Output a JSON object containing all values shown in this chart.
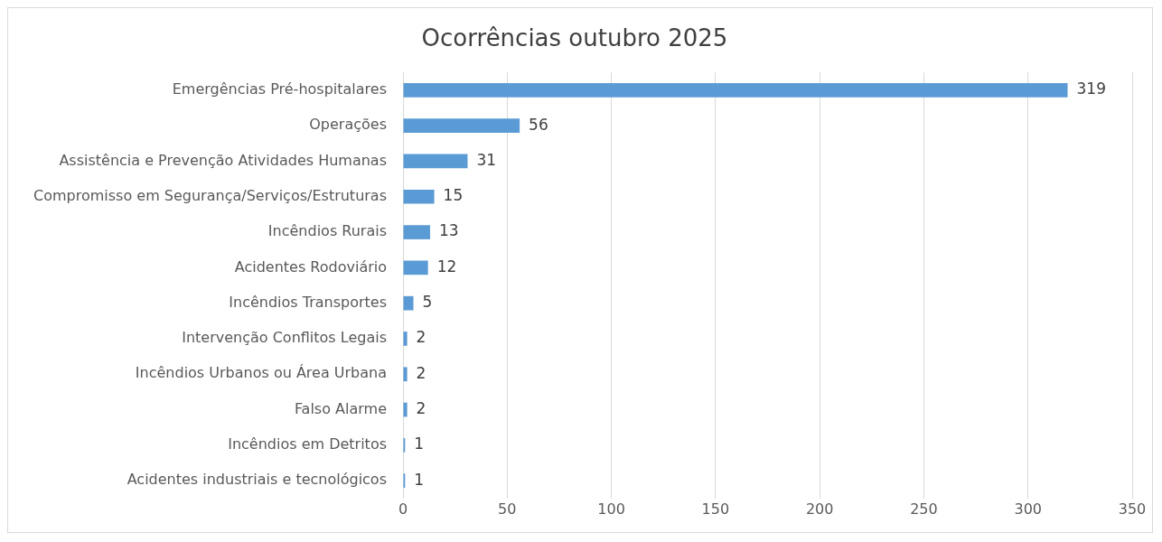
{
  "chart_data": {
    "type": "bar",
    "orientation": "horizontal",
    "title": "Ocorrências outubro 2025",
    "categories": [
      "Emergências Pré-hospitalares",
      "Operações",
      "Assistência e Prevenção Atividades Humanas",
      "Compromisso em Segurança/Serviços/Estruturas",
      "Incêndios Rurais",
      "Acidentes Rodoviário",
      "Incêndios Transportes",
      "Intervenção Conflitos Legais",
      "Incêndios Urbanos ou Área Urbana",
      "Falso Alarme",
      "Incêndios em Detritos",
      "Acidentes industriais e tecnológicos"
    ],
    "values": [
      319,
      56,
      31,
      15,
      13,
      12,
      5,
      2,
      2,
      2,
      1,
      1
    ],
    "color": "#5b9bd5",
    "xlim": [
      0,
      350
    ],
    "xticks": [
      0,
      50,
      100,
      150,
      200,
      250,
      300,
      350
    ],
    "grid": "x",
    "legend": false,
    "data_labels": true
  }
}
